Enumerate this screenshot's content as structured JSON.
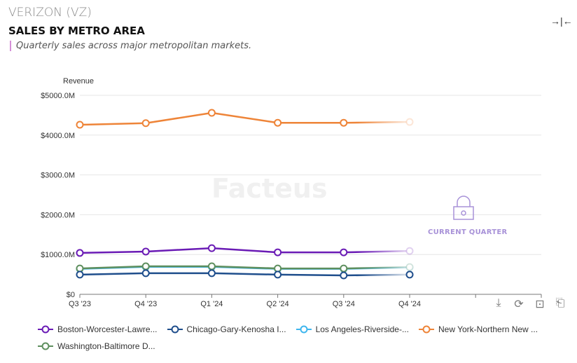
{
  "header": {
    "company": "VERIZON (VZ)",
    "title": "SALES BY METRO AREA",
    "subtitle": "Quarterly sales across major metropolitan markets."
  },
  "watermark": "Facteus",
  "current_quarter_label": "CURRENT QUARTER",
  "toolbar": {
    "icons": [
      "download-icon",
      "refresh-icon",
      "zoom-in-icon",
      "zoom-reset-icon"
    ],
    "collapse_icon": "collapse-icon"
  },
  "chart_data": {
    "type": "line",
    "ylabel": "Revenue",
    "ylim": [
      0,
      5000
    ],
    "y_ticks": [
      "$0",
      "$1000.0M",
      "$2000.0M",
      "$3000.0M",
      "$4000.0M",
      "$5000.0M"
    ],
    "categories": [
      "Q3 '23",
      "Q4 '23",
      "Q1 '24",
      "Q2 '24",
      "Q3 '24",
      "Q4 '24"
    ],
    "grid": true,
    "legend": "bottom",
    "series": [
      {
        "name": "Boston-Worcester-Lawre...",
        "color": "#6a1bb5",
        "values": [
          1040,
          1075,
          1160,
          1055,
          1055,
          1090
        ]
      },
      {
        "name": "Chicago-Gary-Kenosha I...",
        "color": "#1f4e8c",
        "values": [
          495,
          530,
          530,
          495,
          475,
          495
        ]
      },
      {
        "name": "Los Angeles-Riverside-...",
        "color": "#3fb6ee",
        "values": [
          640,
          690,
          690,
          640,
          640,
          675
        ]
      },
      {
        "name": "New York-Northern New ...",
        "color": "#ee8438",
        "values": [
          4260,
          4300,
          4560,
          4310,
          4310,
          4330
        ]
      },
      {
        "name": "Washington-Baltimore D...",
        "color": "#5e8f5e",
        "values": [
          650,
          705,
          705,
          650,
          650,
          685
        ]
      }
    ]
  }
}
